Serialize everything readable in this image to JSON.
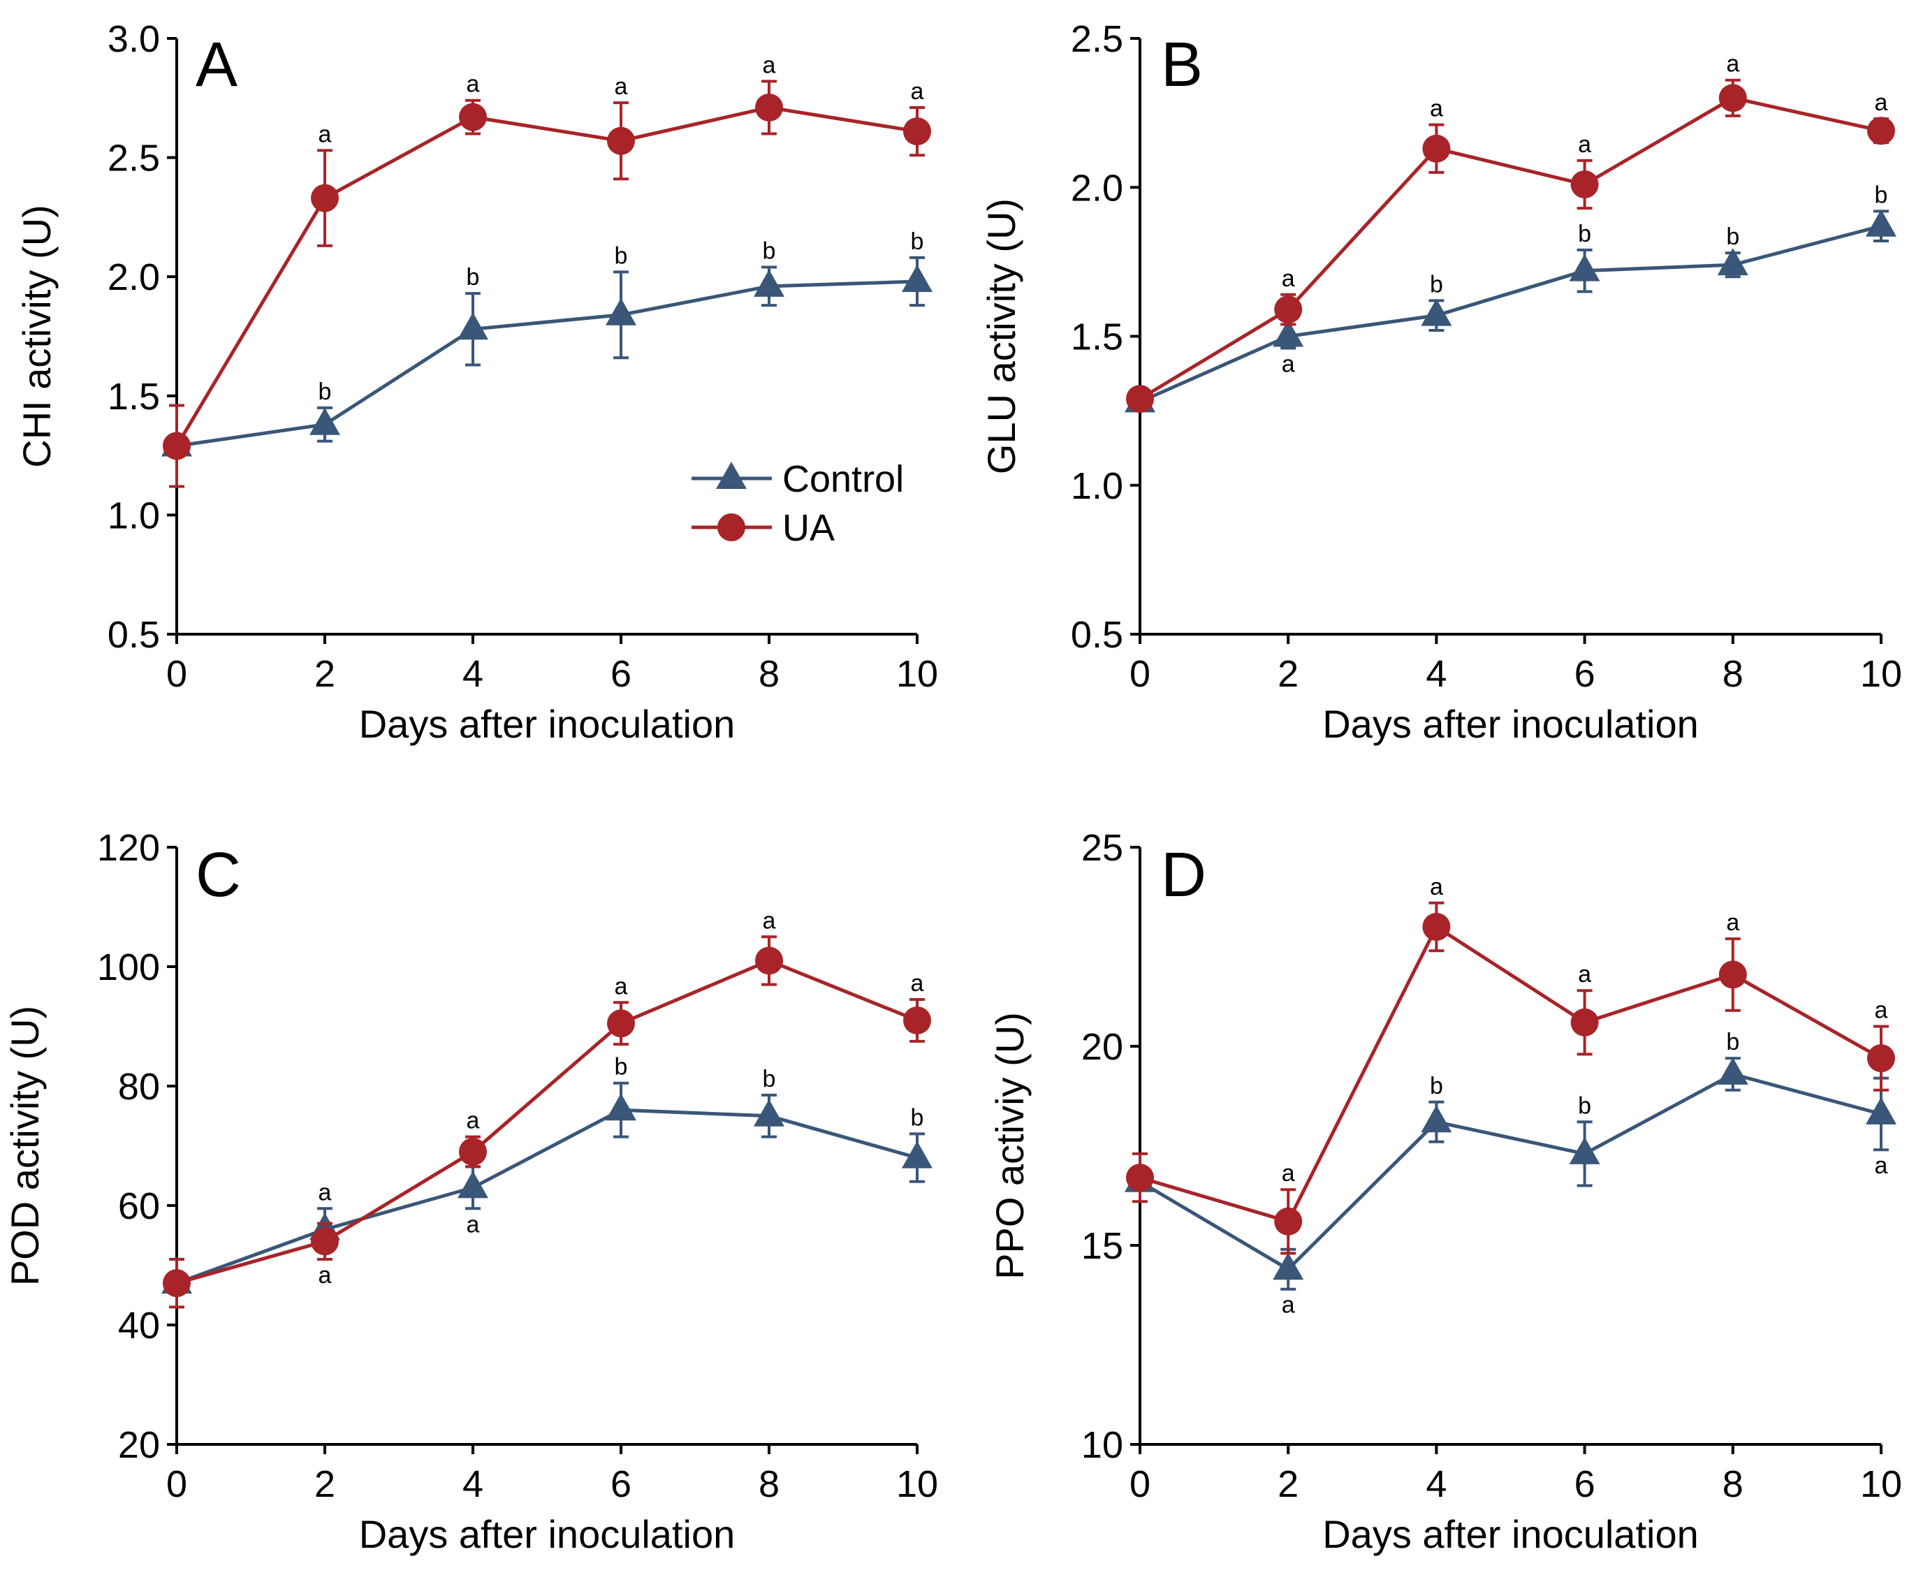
{
  "colors": {
    "control": "#3a5678",
    "ua": "#a82428"
  },
  "legend": {
    "placement": "center-right of panel A",
    "labels": [
      "Control",
      "UA"
    ]
  },
  "chart_data": [
    {
      "panel": "A",
      "type": "line",
      "xlabel": "Days after inoculation",
      "ylabel": "CHI activity (U)",
      "x": [
        0,
        2,
        4,
        6,
        8,
        10
      ],
      "xticks": [
        "0",
        "2",
        "4",
        "6",
        "8",
        "10"
      ],
      "xlim": [
        0,
        10
      ],
      "ylim": [
        0.5,
        3.0
      ],
      "yticks": [
        "0.5",
        "1.0",
        "1.5",
        "2.0",
        "2.5",
        "3.0"
      ],
      "series": [
        {
          "name": "Control",
          "marker": "triangle",
          "values": [
            1.29,
            1.38,
            1.78,
            1.84,
            1.96,
            1.98
          ],
          "errors": [
            0.03,
            0.07,
            0.15,
            0.18,
            0.08,
            0.1
          ],
          "sig": [
            "",
            "b",
            "b",
            "b",
            "b",
            "b"
          ],
          "sig_pos": [
            "above",
            "above",
            "above",
            "above",
            "above",
            "above"
          ]
        },
        {
          "name": "UA",
          "marker": "circle",
          "values": [
            1.29,
            2.33,
            2.67,
            2.57,
            2.71,
            2.61
          ],
          "errors": [
            0.17,
            0.2,
            0.07,
            0.16,
            0.11,
            0.1
          ],
          "sig": [
            "",
            "a",
            "a",
            "a",
            "a",
            "a"
          ],
          "sig_pos": [
            "above",
            "above",
            "above",
            "above",
            "above",
            "above"
          ]
        }
      ]
    },
    {
      "panel": "B",
      "type": "line",
      "xlabel": "Days after inoculation",
      "ylabel": "GLU activity (U)",
      "x": [
        0,
        2,
        4,
        6,
        8,
        10
      ],
      "xticks": [
        "0",
        "2",
        "4",
        "6",
        "8",
        "10"
      ],
      "xlim": [
        0,
        10
      ],
      "ylim": [
        0.5,
        2.5
      ],
      "yticks": [
        "0.5",
        "1.0",
        "1.5",
        "2.0",
        "2.5"
      ],
      "series": [
        {
          "name": "Control",
          "marker": "triangle",
          "values": [
            1.28,
            1.5,
            1.57,
            1.72,
            1.74,
            1.87
          ],
          "errors": [
            0.02,
            0.04,
            0.05,
            0.07,
            0.04,
            0.05
          ],
          "sig": [
            "",
            "a",
            "b",
            "b",
            "b",
            "b"
          ],
          "sig_pos": [
            "above",
            "below",
            "above",
            "above",
            "above",
            "above"
          ]
        },
        {
          "name": "UA",
          "marker": "circle",
          "values": [
            1.29,
            1.59,
            2.13,
            2.01,
            2.3,
            2.19
          ],
          "errors": [
            0.03,
            0.05,
            0.08,
            0.08,
            0.06,
            0.04
          ],
          "sig": [
            "",
            "a",
            "a",
            "a",
            "a",
            "a"
          ],
          "sig_pos": [
            "above",
            "above",
            "above",
            "above",
            "above",
            "above"
          ]
        }
      ]
    },
    {
      "panel": "C",
      "type": "line",
      "xlabel": "Days after inoculation",
      "ylabel": "POD activity (U)",
      "x": [
        0,
        2,
        4,
        6,
        8,
        10
      ],
      "xticks": [
        "0",
        "2",
        "4",
        "6",
        "8",
        "10"
      ],
      "xlim": [
        0,
        10
      ],
      "ylim": [
        20,
        120
      ],
      "yticks": [
        "20",
        "40",
        "60",
        "80",
        "100",
        "120"
      ],
      "series": [
        {
          "name": "Control",
          "marker": "triangle",
          "values": [
            47,
            56,
            63,
            76,
            75,
            68
          ],
          "errors": [
            1.0,
            3.5,
            3.5,
            4.5,
            3.5,
            4.0
          ],
          "sig": [
            "",
            "a",
            "a",
            "b",
            "b",
            "b"
          ],
          "sig_pos": [
            "above",
            "above",
            "below",
            "above",
            "above",
            "above"
          ]
        },
        {
          "name": "UA",
          "marker": "circle",
          "values": [
            47,
            54,
            69,
            90.5,
            101,
            91
          ],
          "errors": [
            4.0,
            3.0,
            2.5,
            3.5,
            4.0,
            3.5
          ],
          "sig": [
            "",
            "a",
            "a",
            "a",
            "a",
            "a"
          ],
          "sig_pos": [
            "above",
            "below",
            "above",
            "above",
            "above",
            "above"
          ]
        }
      ]
    },
    {
      "panel": "D",
      "type": "line",
      "xlabel": "Days after inoculation",
      "ylabel": "PPO activiy (U)",
      "x": [
        0,
        2,
        4,
        6,
        8,
        10
      ],
      "xticks": [
        "0",
        "2",
        "4",
        "6",
        "8",
        "10"
      ],
      "xlim": [
        0,
        10
      ],
      "ylim": [
        10,
        25
      ],
      "yticks": [
        "10",
        "15",
        "20",
        "25"
      ],
      "series": [
        {
          "name": "Control",
          "marker": "triangle",
          "values": [
            16.6,
            14.4,
            18.1,
            17.3,
            19.3,
            18.3
          ],
          "errors": [
            0.2,
            0.5,
            0.5,
            0.8,
            0.4,
            0.9
          ],
          "sig": [
            "",
            "a",
            "b",
            "b",
            "b",
            "a"
          ],
          "sig_pos": [
            "above",
            "below",
            "above",
            "above",
            "above",
            "below"
          ]
        },
        {
          "name": "UA",
          "marker": "circle",
          "values": [
            16.7,
            15.6,
            23.0,
            20.6,
            21.8,
            19.7
          ],
          "errors": [
            0.6,
            0.8,
            0.6,
            0.8,
            0.9,
            0.8
          ],
          "sig": [
            "",
            "a",
            "a",
            "a",
            "a",
            "a"
          ],
          "sig_pos": [
            "above",
            "above",
            "above",
            "above",
            "above",
            "above"
          ]
        }
      ]
    }
  ]
}
